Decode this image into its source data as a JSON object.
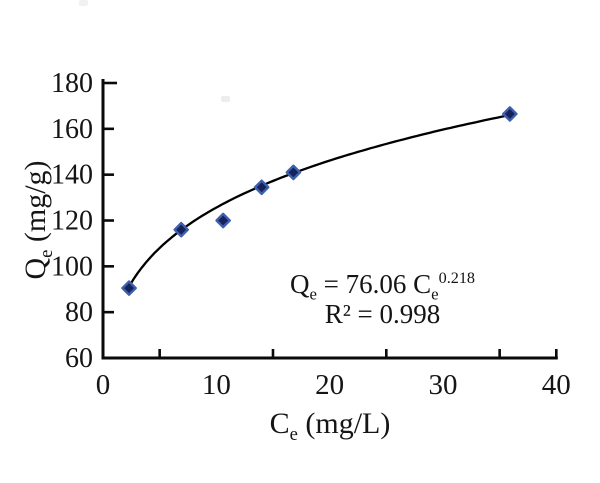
{
  "chart_data": {
    "type": "scatter",
    "title": "",
    "x": [
      2.3,
      6.9,
      10.6,
      14.0,
      16.8,
      35.9
    ],
    "y": [
      90.5,
      116.0,
      120.0,
      134.5,
      141.0,
      166.5
    ],
    "xlabel": "Ce (mg/L)",
    "ylabel": "Qe (mg/g)",
    "xlim": [
      0,
      40
    ],
    "ylim": [
      60,
      180
    ],
    "x_major_ticks": [
      0,
      10,
      20,
      30,
      40
    ],
    "x_minor_ticks": [
      5,
      15,
      25,
      35,
      40
    ],
    "y_major_ticks": [
      60,
      80,
      100,
      120,
      140,
      160,
      180
    ],
    "grid": false,
    "legend_position": "none",
    "fit_curve": {
      "type": "power",
      "coefficient": 76.06,
      "exponent": 0.218,
      "x_start": 2.3,
      "x_end": 35.9
    },
    "annotation_equation": "Qe = 76.06 Ce^0.218",
    "annotation_r_squared": "R² = 0.998",
    "marker": {
      "shape": "diamond",
      "fill": "#15235a",
      "halo": "#3e5fae"
    },
    "curve_color": "#000000",
    "axis_color": "#0a0a0a",
    "text_color": "#151515"
  },
  "labels": {
    "y_title": {
      "symbol": "Q",
      "sub": "e",
      "units": " (mg/g)"
    },
    "x_title": {
      "symbol": "C",
      "sub": "e",
      "units": " (mg/L)"
    },
    "annotation": {
      "l1_a": "Q",
      "l1_a_sub": "e",
      "l1_b": " = 76.06 C",
      "l1_b_sub": "e",
      "l1_exp": "0.218",
      "line2": "R² = 0.998"
    }
  }
}
